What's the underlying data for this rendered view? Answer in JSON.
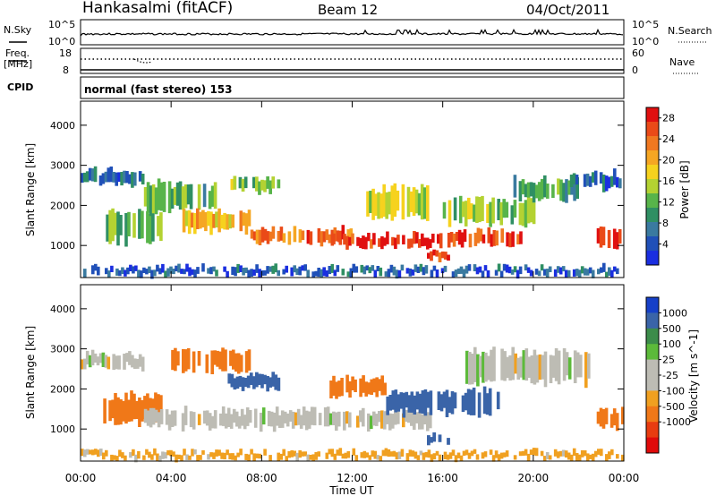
{
  "header": {
    "station": "Hankasalmi (fitACF)",
    "beam": "Beam 12",
    "date": "04/Oct/2011"
  },
  "top_panels": {
    "nsky_label": "N.Sky",
    "nsky_ticks": [
      "10^5",
      "10^0"
    ],
    "nsearch_label": "N.Search",
    "nsearch_ticks": [
      "10^5",
      "10^0"
    ],
    "freq_label": "Freq.",
    "freq_unit": "[MHz]",
    "freq_ticks": [
      "18",
      "8"
    ],
    "nave_label": "Nave",
    "nave_ticks": [
      "60",
      "0"
    ],
    "cpid_label": "CPID",
    "cpid_value": "normal (fast stereo) 153"
  },
  "colors": {
    "power_scale": [
      "#1a2ee0",
      "#2050b8",
      "#3a7aa0",
      "#2f8f63",
      "#58b44a",
      "#b4d232",
      "#f6d21e",
      "#f5a623",
      "#f07820",
      "#ea4a18",
      "#e01010"
    ],
    "velocity_scale": [
      "#1640c8",
      "#3a64a8",
      "#3c8c4a",
      "#5cba3a",
      "#bcbcb2",
      "#c4c4bc",
      "#f0a020",
      "#f07818",
      "#e83c10",
      "#e00a0a"
    ],
    "grey": "#bdbcb4"
  },
  "chart_data": [
    {
      "type": "heatmap",
      "panel": "power",
      "xlabel": "Time UT",
      "ylabel": "Slant Range [km]",
      "x_ticks": [
        "00:00",
        "04:00",
        "08:00",
        "12:00",
        "16:00",
        "20:00",
        "00:00"
      ],
      "y_ticks": [
        "1000",
        "2000",
        "3000",
        "4000"
      ],
      "ylim": [
        200,
        4600
      ],
      "colorbar_label": "Power [dB]",
      "colorbar_ticks": [
        "4",
        "8",
        "12",
        "16",
        "20",
        "24",
        "28"
      ],
      "zlim": [
        0,
        30
      ],
      "regions": [
        {
          "t0": 0.0,
          "t1": 2.8,
          "r0": 2500,
          "r1": 2900,
          "value": 6
        },
        {
          "t0": 1.0,
          "t1": 3.6,
          "r0": 1000,
          "r1": 1900,
          "value": 13
        },
        {
          "t0": 2.8,
          "t1": 6.0,
          "r0": 1800,
          "r1": 2600,
          "value": 11
        },
        {
          "t0": 4.5,
          "t1": 7.5,
          "r0": 1300,
          "r1": 1900,
          "value": 19
        },
        {
          "t0": 6.5,
          "t1": 8.8,
          "r0": 2300,
          "r1": 2700,
          "value": 14
        },
        {
          "t0": 7.5,
          "t1": 12.0,
          "r0": 1050,
          "r1": 1450,
          "value": 24
        },
        {
          "t0": 11.0,
          "t1": 15.5,
          "r0": 950,
          "r1": 1300,
          "value": 28
        },
        {
          "t0": 12.5,
          "t1": 15.5,
          "r0": 1600,
          "r1": 2500,
          "value": 15
        },
        {
          "t0": 15.3,
          "t1": 16.3,
          "r0": 650,
          "r1": 900,
          "value": 28
        },
        {
          "t0": 15.5,
          "t1": 19.5,
          "r0": 1000,
          "r1": 1400,
          "value": 27
        },
        {
          "t0": 16.0,
          "t1": 20.2,
          "r0": 1500,
          "r1": 2200,
          "value": 14
        },
        {
          "t0": 19.0,
          "t1": 22.0,
          "r0": 2100,
          "r1": 2700,
          "value": 10
        },
        {
          "t0": 21.5,
          "t1": 24.0,
          "r0": 2400,
          "r1": 2850,
          "value": 6
        },
        {
          "t0": 22.8,
          "t1": 24.0,
          "r0": 900,
          "r1": 1500,
          "value": 27
        },
        {
          "t0": 0.0,
          "t1": 24.0,
          "r0": 250,
          "r1": 480,
          "value": 5
        }
      ]
    },
    {
      "type": "heatmap",
      "panel": "velocity",
      "xlabel": "Time UT",
      "ylabel": "Slant Range [km]",
      "x_ticks": [
        "00:00",
        "04:00",
        "08:00",
        "12:00",
        "16:00",
        "20:00",
        "00:00"
      ],
      "y_ticks": [
        "1000",
        "2000",
        "3000",
        "4000"
      ],
      "ylim": [
        200,
        4600
      ],
      "colorbar_label": "Velocity [m s^-1]",
      "colorbar_ticks": [
        "1000",
        "500",
        "100",
        "25",
        "-25",
        "-100",
        "-500",
        "-1000"
      ],
      "regions": [
        {
          "t0": 0.0,
          "t1": 2.8,
          "r0": 2500,
          "r1": 2900,
          "value": 0
        },
        {
          "t0": 1.0,
          "t1": 3.6,
          "r0": 1100,
          "r1": 1900,
          "value": -300
        },
        {
          "t0": 2.8,
          "t1": 15.5,
          "r0": 1000,
          "r1": 1500,
          "value": 0
        },
        {
          "t0": 4.0,
          "t1": 7.5,
          "r0": 2400,
          "r1": 3000,
          "value": -200
        },
        {
          "t0": 6.5,
          "t1": 8.8,
          "r0": 2000,
          "r1": 2400,
          "value": 150
        },
        {
          "t0": 11.0,
          "t1": 13.5,
          "r0": 1800,
          "r1": 2300,
          "value": -150
        },
        {
          "t0": 13.5,
          "t1": 18.5,
          "r0": 1300,
          "r1": 2000,
          "value": 200
        },
        {
          "t0": 15.3,
          "t1": 16.3,
          "r0": 650,
          "r1": 900,
          "value": 150
        },
        {
          "t0": 17.0,
          "t1": 22.5,
          "r0": 2100,
          "r1": 3000,
          "value": 0
        },
        {
          "t0": 22.8,
          "t1": 24.0,
          "r0": 1000,
          "r1": 1500,
          "value": -200
        },
        {
          "t0": 0.0,
          "t1": 24.0,
          "r0": 250,
          "r1": 450,
          "value": -50
        }
      ]
    }
  ]
}
